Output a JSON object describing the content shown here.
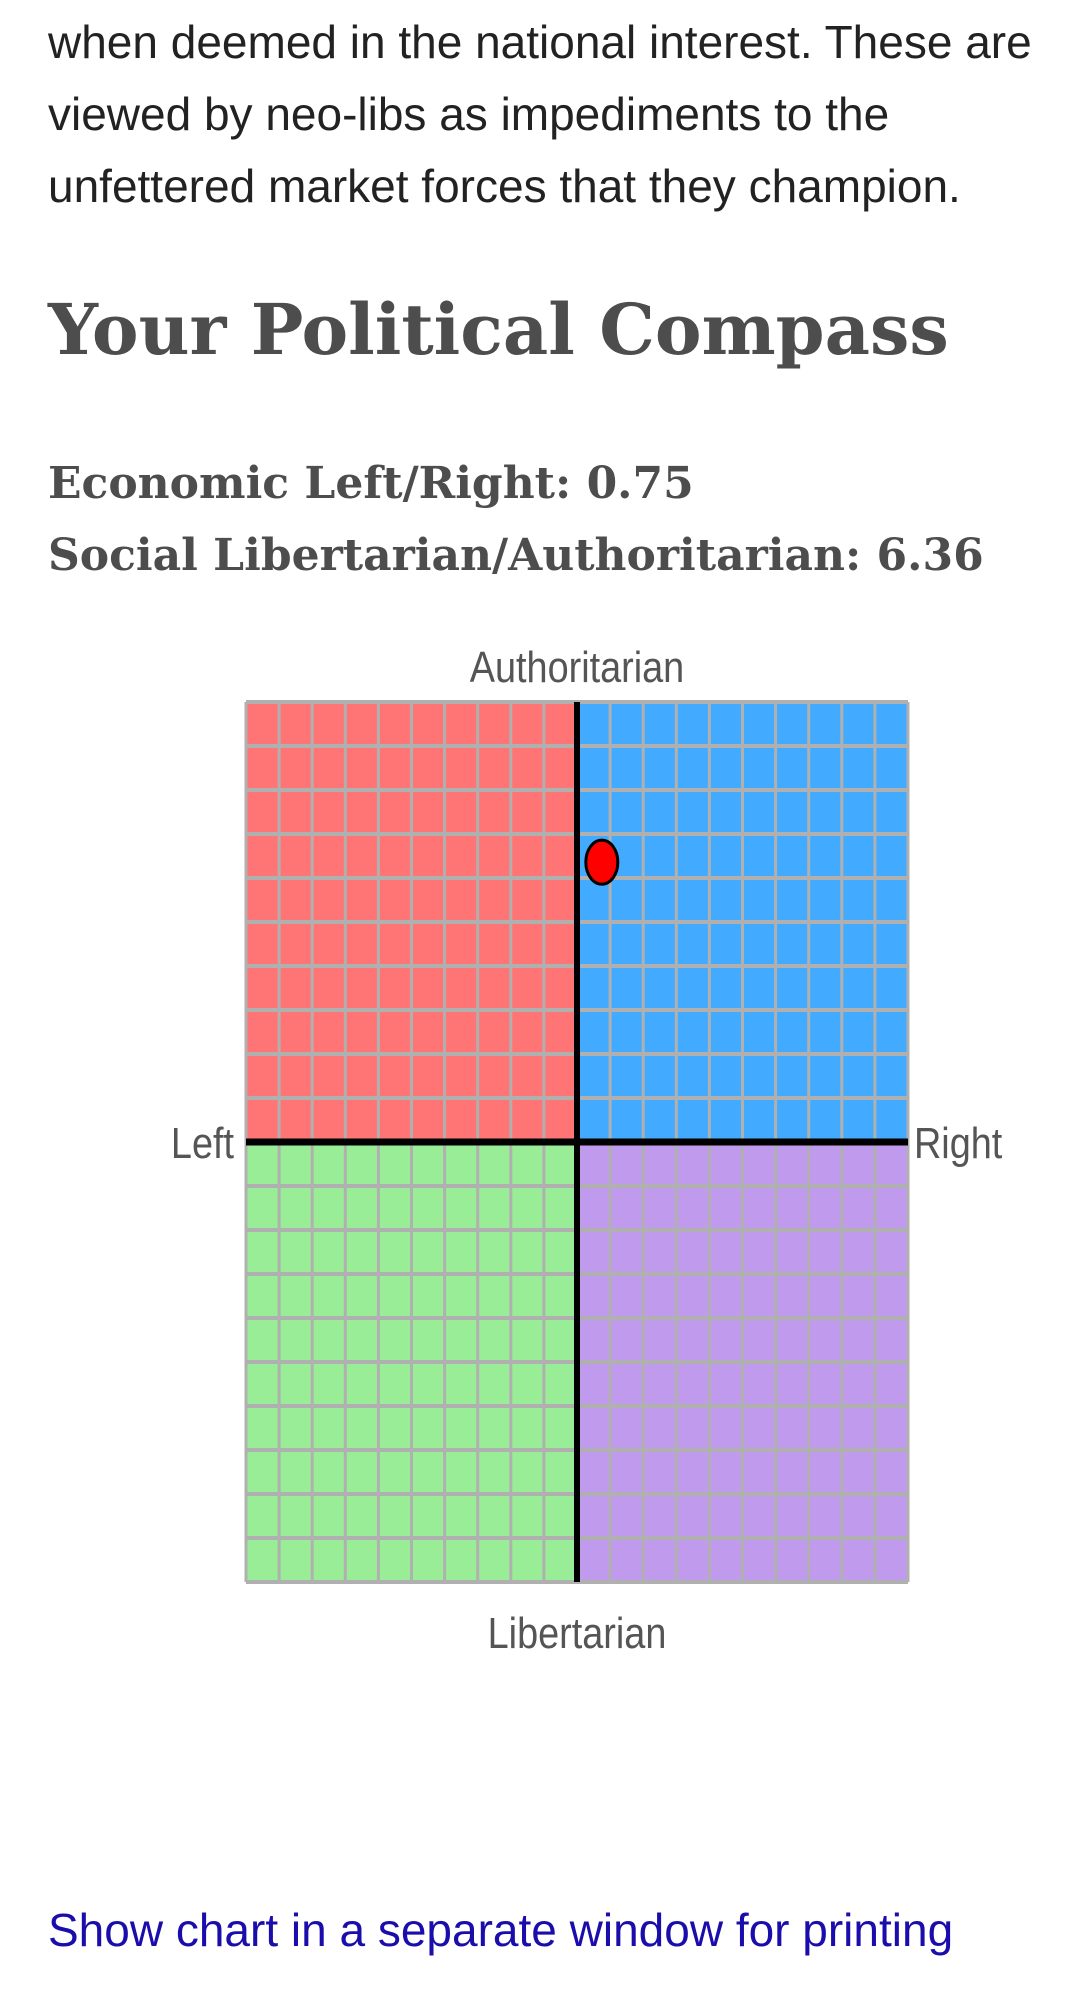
{
  "intro": {
    "lines": [
      "when deemed in the national interest. These are",
      "viewed by neo-libs as impediments to the",
      "unfettered market forces that they champion."
    ]
  },
  "heading": "Your Political Compass",
  "scores": {
    "economic": "Economic Left/Right: 0.75",
    "social": "Social Libertarian/Authoritarian: 6.36"
  },
  "chart_data": {
    "type": "scatter",
    "title": "",
    "x_axis": {
      "min": -10,
      "max": 10,
      "left_label": "Left",
      "right_label": "Right"
    },
    "y_axis": {
      "min": -10,
      "max": 10,
      "bottom_label": "Libertarian",
      "top_label": "Authoritarian"
    },
    "grid": true,
    "point": {
      "x": 0.75,
      "y": 6.36,
      "color": "#ff0000"
    },
    "quadrant_colors": {
      "top_left": "#ff7575",
      "top_right": "#42aaff",
      "bottom_left": "#9aed97",
      "bottom_right": "#c09aec"
    },
    "grid_color": "#b0b0b0",
    "axis_color": "#000000"
  },
  "print_link": "Show chart in a separate window for printing"
}
